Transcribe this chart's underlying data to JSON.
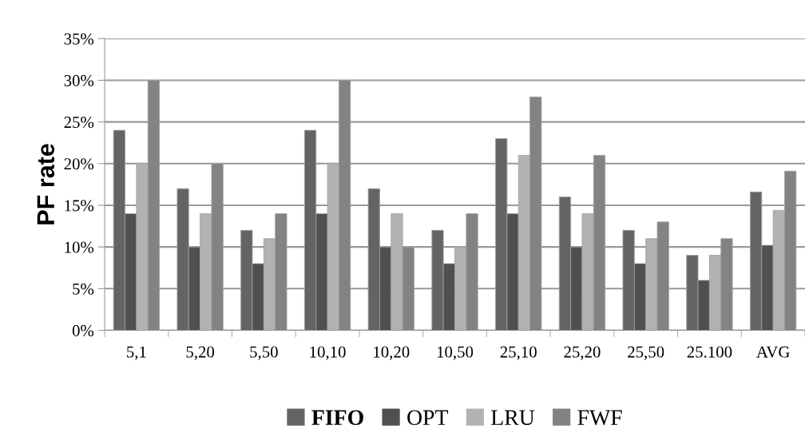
{
  "chart_data": {
    "type": "bar",
    "ylabel": "PF rate",
    "categories": [
      "5,1",
      "5,20",
      "5,50",
      "10,10",
      "10,20",
      "10,50",
      "25,10",
      "25,20",
      "25,50",
      "25.100",
      "AVG"
    ],
    "series": [
      {
        "name": "FIFO",
        "color": "#646464",
        "values": [
          24,
          17,
          12,
          24,
          17,
          12,
          23,
          16,
          12,
          9,
          16.6
        ]
      },
      {
        "name": "OPT",
        "color": "#505050",
        "values": [
          14,
          10,
          8,
          14,
          10,
          8,
          14,
          10,
          8,
          6,
          10.2
        ]
      },
      {
        "name": "LRU",
        "color": "#b2b2b2",
        "values": [
          20,
          14,
          11,
          20,
          14,
          10,
          21,
          14,
          11,
          9,
          14.4
        ]
      },
      {
        "name": "FWF",
        "color": "#838383",
        "values": [
          30,
          20,
          14,
          30,
          10,
          14,
          28,
          21,
          13,
          11,
          19.1
        ]
      }
    ],
    "ylim": [
      0,
      35
    ],
    "yticks": [
      {
        "value": 0,
        "label": "0%"
      },
      {
        "value": 5,
        "label": "5%"
      },
      {
        "value": 10,
        "label": "10%"
      },
      {
        "value": 15,
        "label": "15%"
      },
      {
        "value": 20,
        "label": "20%"
      },
      {
        "value": 25,
        "label": "25%"
      },
      {
        "value": 30,
        "label": "30%"
      },
      {
        "value": 35,
        "label": "35%"
      }
    ],
    "grid": "y",
    "legend": "bottom"
  }
}
